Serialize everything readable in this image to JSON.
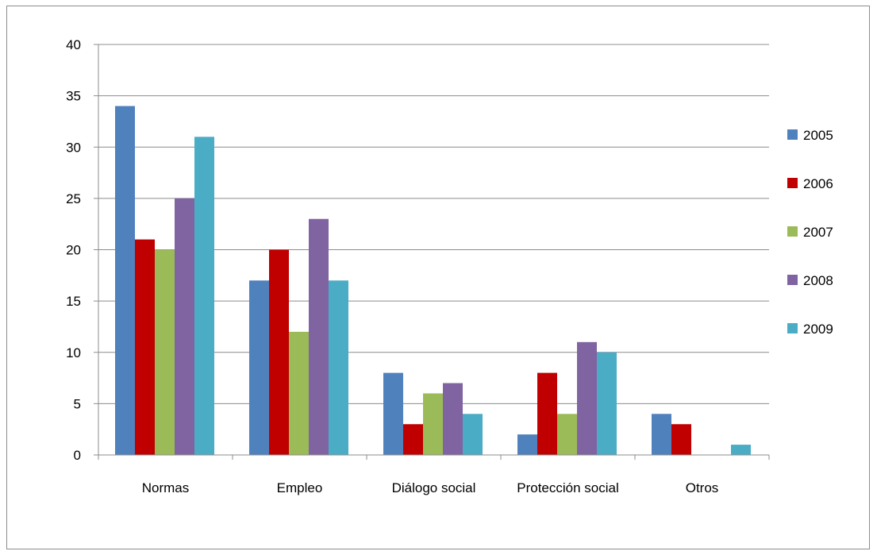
{
  "chart_data": {
    "type": "bar",
    "title": "",
    "xlabel": "",
    "ylabel": "",
    "categories": [
      "Normas",
      "Empleo",
      "Diálogo social",
      "Protección social",
      "Otros"
    ],
    "series": [
      {
        "name": "2005",
        "color": "#4f81bd",
        "values": [
          34,
          17,
          8,
          2,
          4
        ]
      },
      {
        "name": "2006",
        "color": "#c00000",
        "values": [
          21,
          20,
          3,
          8,
          3
        ]
      },
      {
        "name": "2007",
        "color": "#9bbb59",
        "values": [
          20,
          12,
          6,
          4,
          0
        ]
      },
      {
        "name": "2008",
        "color": "#8064a2",
        "values": [
          25,
          23,
          7,
          11,
          0
        ]
      },
      {
        "name": "2009",
        "color": "#4bacc6",
        "values": [
          31,
          17,
          4,
          10,
          1
        ]
      }
    ],
    "ylim": [
      0,
      40
    ],
    "yticks": [
      0,
      5,
      10,
      15,
      20,
      25,
      30,
      35,
      40
    ],
    "grid": true,
    "legend_position": "right"
  }
}
